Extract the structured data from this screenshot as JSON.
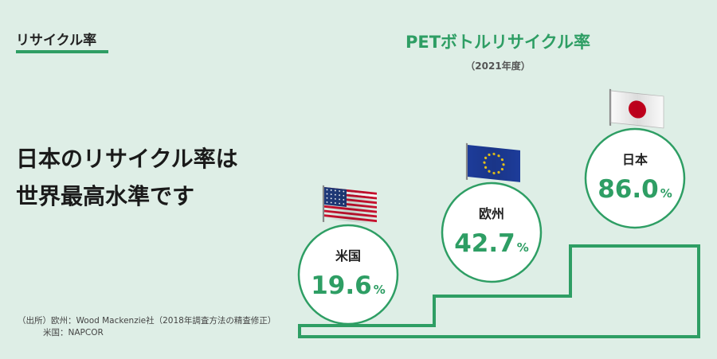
{
  "section_tag": "リサイクル率",
  "headline": {
    "line1": "日本のリサイクル率は",
    "line2": "世界最高水準です"
  },
  "source": {
    "line1": "（出所）欧州：Wood Mackenzie社（2018年調査方法の精査修正）",
    "line2": "米国：NAPCOR"
  },
  "colors": {
    "background": "#deeee6",
    "accent": "#2e9e64",
    "circle_fill": "#ffffff",
    "text_dark": "#222222"
  },
  "chart_data": {
    "type": "bar",
    "title": "PETボトルリサイクル率",
    "subtitle": "（2021年度）",
    "unit": "%",
    "categories": [
      "米国",
      "欧州",
      "日本"
    ],
    "values": [
      19.6,
      42.7,
      86.0
    ],
    "value_labels": [
      "19.6",
      "42.7",
      "86.0"
    ],
    "flags": [
      "us-flag-icon",
      "eu-flag-icon",
      "japan-flag-icon"
    ],
    "style": "staircase with circle labels"
  }
}
